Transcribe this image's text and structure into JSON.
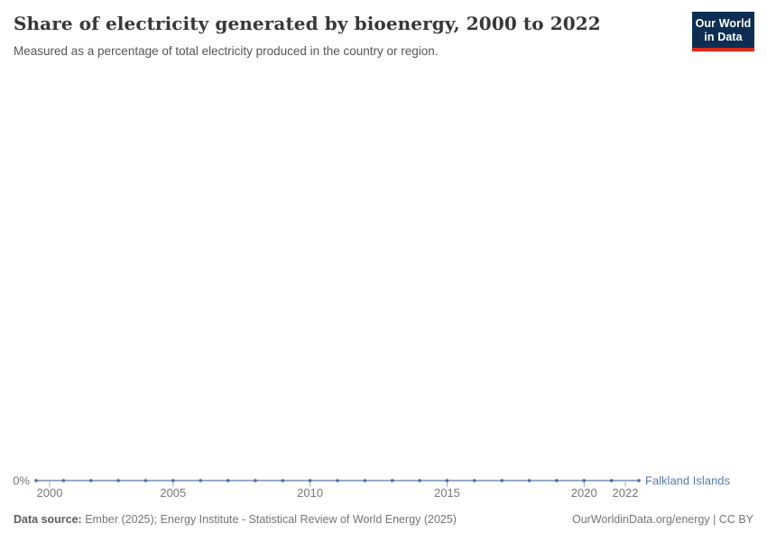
{
  "header": {
    "title": "Share of electricity generated by bioenergy, 2000 to 2022",
    "subtitle": "Measured as a percentage of total electricity produced in the country or region.",
    "logo": {
      "line1": "Our World",
      "line2": "in Data",
      "bg_color": "#0d2e52",
      "accent_color": "#dc2a1d"
    }
  },
  "footer": {
    "data_source_label": "Data source:",
    "data_source_text": "Ember (2025); Energy Institute - Statistical Review of World Energy (2025)",
    "credit": "OurWorldinData.org/energy | CC BY"
  },
  "chart_data": {
    "type": "line",
    "title": "Share of electricity generated by bioenergy, 2000 to 2022",
    "subtitle": "Measured as a percentage of total electricity produced in the country or region.",
    "xlabel": "",
    "ylabel": "",
    "unit": "%",
    "x": [
      2000,
      2001,
      2002,
      2003,
      2004,
      2005,
      2006,
      2007,
      2008,
      2009,
      2010,
      2011,
      2012,
      2013,
      2014,
      2015,
      2016,
      2017,
      2018,
      2019,
      2020,
      2021,
      2022
    ],
    "series": [
      {
        "name": "Falkland Islands",
        "color": "#4a69a5",
        "values": [
          0,
          0,
          0,
          0,
          0,
          0,
          0,
          0,
          0,
          0,
          0,
          0,
          0,
          0,
          0,
          0,
          0,
          0,
          0,
          0,
          0,
          0,
          0
        ]
      }
    ],
    "xticks": [
      2000,
      2005,
      2010,
      2015,
      2020,
      2022
    ],
    "ytick_labels": [
      "0%"
    ],
    "ylim": [
      0,
      0
    ],
    "grid": false,
    "markers": true,
    "legend_position": "right-of-line-end"
  }
}
